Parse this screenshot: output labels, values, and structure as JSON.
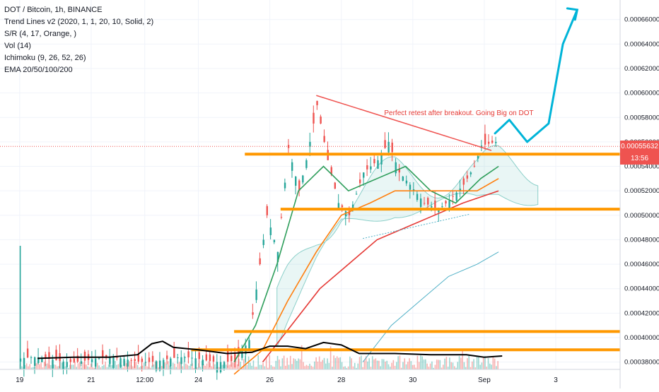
{
  "legend": {
    "title": "DOT / Bitcoin, 1h, BINANCE",
    "indicators": [
      "Trend Lines v2 (2020, 1, 1, 20, 10, Solid, 2)",
      "S/R (4, 17, Orange, )",
      "Vol (14)",
      "Ichimoku (9, 26, 52, 26)",
      "EMA 20/50/100/200"
    ]
  },
  "annotation": "Perfect retest after breakout. Going Big on DOT",
  "last_price_label": "0.00055632",
  "countdown_label": "13:56",
  "colors": {
    "up": "#26a69a",
    "down": "#ef5350",
    "sr": "#ff9800",
    "trend": "#ef5350",
    "arrow": "#00b4d8",
    "ema20": "#2e9e5b",
    "ema50": "#ff7f0e",
    "ema100": "#e53935",
    "ema200": "#4fb0c6",
    "tag": "#ef5350"
  },
  "chart_data": {
    "type": "candlestick",
    "title": "DOT / Bitcoin, 1h, BINANCE",
    "x_ticks": [
      "19",
      "21",
      "12:00",
      "24",
      "26",
      "28",
      "30",
      "Sep",
      "3"
    ],
    "x_tick_positions_days": [
      19,
      21,
      22.5,
      24,
      26,
      28,
      30,
      32,
      34
    ],
    "y_ticks": [
      "0.00038000",
      "0.00040000",
      "0.00042000",
      "0.00044000",
      "0.00046000",
      "0.00048000",
      "0.00050000",
      "0.00052000",
      "0.00054000",
      "0.00056000",
      "0.00058000",
      "0.00060000",
      "0.00062000",
      "0.00064000",
      "0.00066000"
    ],
    "y_range": [
      0.000374,
      0.000676
    ],
    "x_range_days": [
      18.45,
      35.8
    ],
    "last_price": 0.00055632,
    "sr_levels": [
      0.00055,
      0.000505,
      0.000405,
      0.00039
    ],
    "close_path": [
      [
        25.0,
        0.00038
      ],
      [
        25.4,
        0.000398
      ],
      [
        25.7,
        0.00046
      ],
      [
        25.9,
        0.0005
      ],
      [
        26.2,
        0.00047
      ],
      [
        26.5,
        0.000555
      ],
      [
        26.8,
        0.00052
      ],
      [
        27.0,
        0.000545
      ],
      [
        27.3,
        0.00059
      ],
      [
        27.6,
        0.000545
      ],
      [
        27.9,
        0.00051
      ],
      [
        28.2,
        0.0005
      ],
      [
        28.6,
        0.000535
      ],
      [
        29.0,
        0.000545
      ],
      [
        29.3,
        0.00056
      ],
      [
        29.6,
        0.000535
      ],
      [
        29.9,
        0.000525
      ],
      [
        30.3,
        0.00051
      ],
      [
        30.7,
        0.000505
      ],
      [
        31.0,
        0.000512
      ],
      [
        31.4,
        0.000525
      ],
      [
        31.7,
        0.00054
      ],
      [
        31.9,
        0.000557
      ],
      [
        32.3,
        0.00056
      ]
    ],
    "ema20": [
      [
        25.0,
        0.00038
      ],
      [
        25.6,
        0.00041
      ],
      [
        26.2,
        0.00046
      ],
      [
        26.8,
        0.00052
      ],
      [
        27.5,
        0.00054
      ],
      [
        28.2,
        0.00052
      ],
      [
        29.0,
        0.00053
      ],
      [
        29.8,
        0.00054
      ],
      [
        30.5,
        0.00052
      ],
      [
        31.2,
        0.00051
      ],
      [
        31.9,
        0.00053
      ],
      [
        32.4,
        0.00054
      ]
    ],
    "ema50": [
      [
        25.0,
        0.00037
      ],
      [
        25.8,
        0.00039
      ],
      [
        26.5,
        0.00043
      ],
      [
        27.3,
        0.00047
      ],
      [
        28.0,
        0.0005
      ],
      [
        28.8,
        0.00051
      ],
      [
        29.5,
        0.00052
      ],
      [
        30.3,
        0.00052
      ],
      [
        31.0,
        0.00052
      ],
      [
        31.8,
        0.00052
      ],
      [
        32.4,
        0.00053
      ]
    ],
    "ema100": [
      [
        25.8,
        0.00038
      ],
      [
        26.6,
        0.00041
      ],
      [
        27.4,
        0.00044
      ],
      [
        28.2,
        0.00046
      ],
      [
        29.0,
        0.00048
      ],
      [
        29.8,
        0.00049
      ],
      [
        30.6,
        0.0005
      ],
      [
        31.4,
        0.00051
      ],
      [
        32.4,
        0.00052
      ]
    ],
    "ema200": [
      [
        28.6,
        0.00038
      ],
      [
        29.4,
        0.00041
      ],
      [
        30.2,
        0.00043
      ],
      [
        31.0,
        0.00045
      ],
      [
        31.8,
        0.00046
      ],
      [
        32.4,
        0.00047
      ]
    ],
    "trend_line": [
      [
        27.3,
        0.000598
      ],
      [
        32.2,
        0.000553
      ]
    ],
    "dotted_line": [
      [
        28.6,
        0.000481
      ],
      [
        31.6,
        0.000501
      ]
    ],
    "arrow_path": [
      [
        32.3,
        0.000567
      ],
      [
        32.7,
        0.000578
      ],
      [
        33.2,
        0.00056
      ],
      [
        33.8,
        0.000575
      ],
      [
        34.2,
        0.00064
      ],
      [
        34.6,
        0.000668
      ]
    ],
    "volume_line": [
      [
        19.5,
        0.000383
      ],
      [
        20.5,
        0.000384
      ],
      [
        21.5,
        0.000384
      ],
      [
        22.3,
        0.000386
      ],
      [
        22.7,
        0.000395
      ],
      [
        23.0,
        0.000397
      ],
      [
        23.3,
        0.000392
      ],
      [
        24.0,
        0.00039
      ],
      [
        24.8,
        0.000387
      ],
      [
        25.5,
        0.000388
      ],
      [
        26.0,
        0.000393
      ],
      [
        26.5,
        0.000393
      ],
      [
        27.0,
        0.000391
      ],
      [
        27.5,
        0.000396
      ],
      [
        28.0,
        0.000394
      ],
      [
        28.5,
        0.000387
      ],
      [
        29.5,
        0.000387
      ],
      [
        30.5,
        0.000386
      ],
      [
        31.5,
        0.000386
      ],
      [
        32.0,
        0.000384
      ],
      [
        32.5,
        0.000385
      ]
    ],
    "xlabel": "",
    "ylabel": ""
  }
}
